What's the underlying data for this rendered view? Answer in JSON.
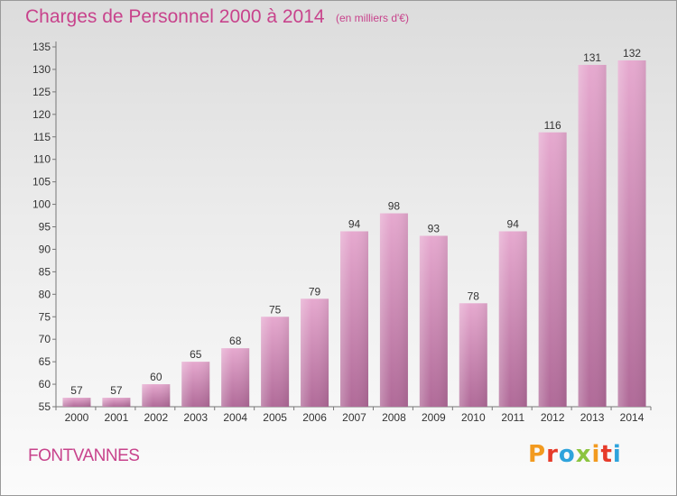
{
  "page": {
    "title": "Charges de Personnel 2000 à 2014",
    "subtitle": "(en milliers d'€)",
    "commune": "FONTVANNES",
    "logo_text": "Proxiti",
    "logo_colors": [
      "#f29a1f",
      "#e63b2a",
      "#2ea3dc",
      "#8bc43f",
      "#f29a1f",
      "#e63b2a",
      "#2ea3dc"
    ]
  },
  "chart_data": {
    "type": "bar",
    "title": "Charges de Personnel 2000 à 2014",
    "subtitle": "(en milliers d'€)",
    "xlabel": "",
    "ylabel": "",
    "categories": [
      "2000",
      "2001",
      "2002",
      "2003",
      "2004",
      "2005",
      "2006",
      "2007",
      "2008",
      "2009",
      "2010",
      "2011",
      "2012",
      "2013",
      "2014"
    ],
    "values": [
      57,
      57,
      60,
      65,
      68,
      75,
      79,
      94,
      98,
      93,
      78,
      94,
      116,
      131,
      132
    ],
    "ylim": [
      55,
      135
    ],
    "yticks": [
      55,
      60,
      65,
      70,
      75,
      80,
      85,
      90,
      95,
      100,
      105,
      110,
      115,
      120,
      125,
      130,
      135
    ],
    "grid": false,
    "legend": "none",
    "bar_color": "#d98ab8"
  }
}
